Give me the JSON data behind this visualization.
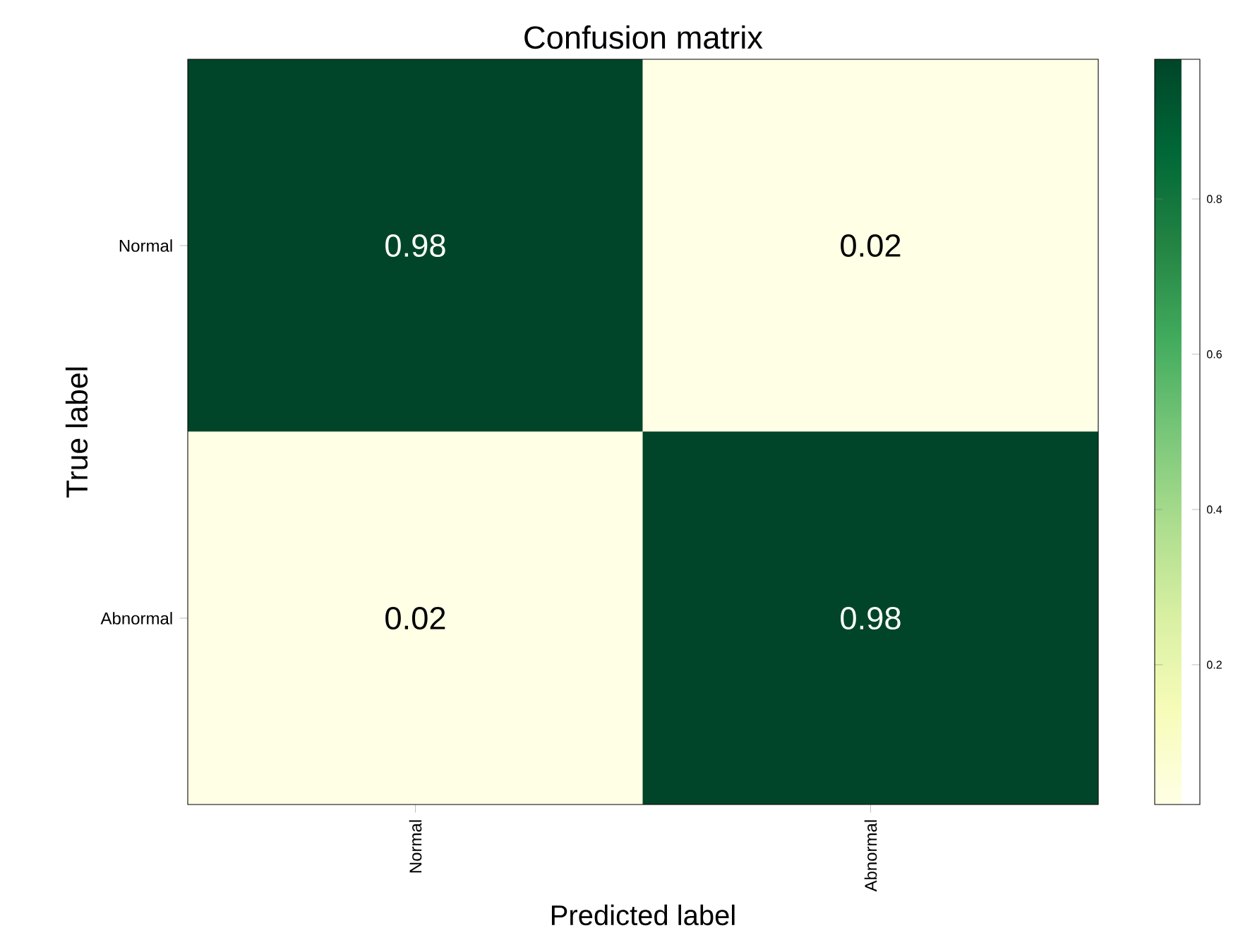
{
  "chart_data": {
    "type": "heatmap",
    "title": "Confusion matrix",
    "xlabel": "Predicted label",
    "ylabel": "True label",
    "categories": [
      "Normal",
      "Abnormal"
    ],
    "y_categories": [
      "Normal",
      "Abnormal"
    ],
    "cells": [
      [
        0.98,
        0.02
      ],
      [
        0.02,
        0.98
      ]
    ],
    "clim": [
      0.02,
      0.98
    ],
    "cticks": [
      0.2,
      0.4,
      0.6,
      0.8
    ],
    "data_labels": true
  }
}
